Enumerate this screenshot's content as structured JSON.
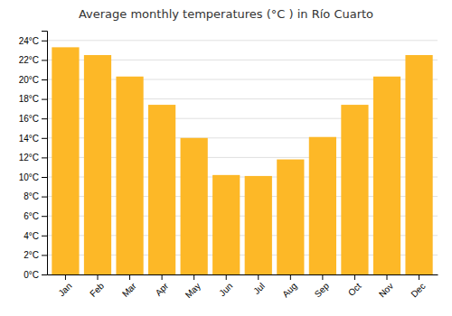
{
  "chart_data": {
    "type": "bar",
    "title": "Average monthly temperatures (°C ) in Río Cuarto",
    "categories": [
      "Jan",
      "Feb",
      "Mar",
      "Apr",
      "May",
      "Jun",
      "Jul",
      "Aug",
      "Sep",
      "Oct",
      "Nov",
      "Dec"
    ],
    "values": [
      23.3,
      22.5,
      20.3,
      17.4,
      14.0,
      10.2,
      10.1,
      11.8,
      14.1,
      17.4,
      20.3,
      22.5
    ],
    "color": "#FDB827",
    "ylim": [
      0,
      25
    ],
    "yticks": [
      {
        "value": 0,
        "label": "0°C"
      },
      {
        "value": 2,
        "label": "2°C"
      },
      {
        "value": 4,
        "label": "4°C"
      },
      {
        "value": 6,
        "label": "6°C"
      },
      {
        "value": 8,
        "label": "8°C"
      },
      {
        "value": 10,
        "label": "10°C"
      },
      {
        "value": 12,
        "label": "12°C"
      },
      {
        "value": 14,
        "label": "14°C"
      },
      {
        "value": 16,
        "label": "16°C"
      },
      {
        "value": 18,
        "label": "18°C"
      },
      {
        "value": 20,
        "label": "20°C"
      },
      {
        "value": 22,
        "label": "22°C"
      },
      {
        "value": 24,
        "label": "24°C"
      }
    ],
    "grid": true
  }
}
